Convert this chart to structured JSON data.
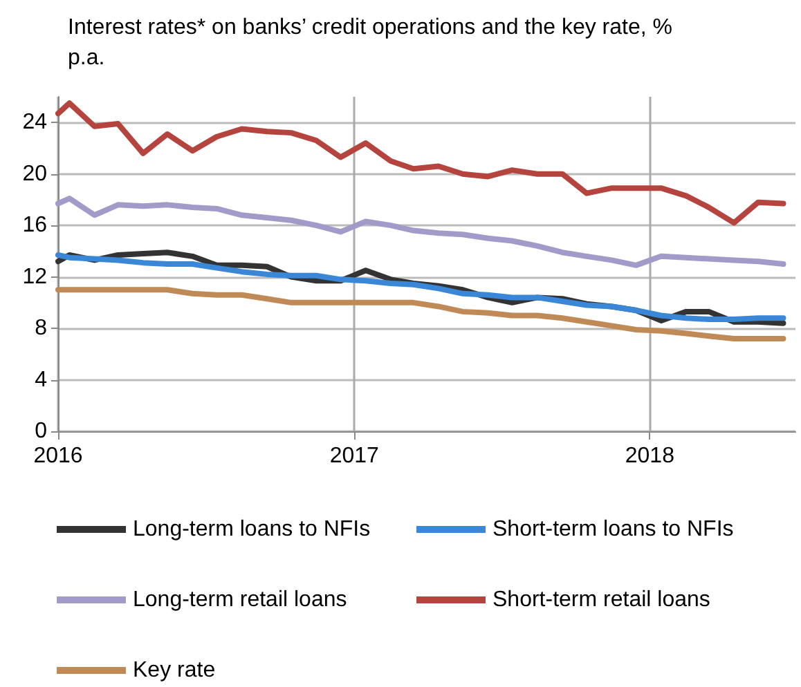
{
  "chart_data": {
    "type": "line",
    "title": "Interest rates* on banks’ credit operations and the key rate, % p.a.",
    "x": [
      "2016-01-01",
      "2016-01-15",
      "2016-02-15",
      "2016-03-15",
      "2016-04-15",
      "2016-05-15",
      "2016-06-15",
      "2016-07-15",
      "2016-08-15",
      "2016-09-15",
      "2016-10-15",
      "2016-11-15",
      "2016-12-15",
      "2017-01-15",
      "2017-02-15",
      "2017-03-15",
      "2017-04-15",
      "2017-05-15",
      "2017-06-15",
      "2017-07-15",
      "2017-08-15",
      "2017-09-15",
      "2017-10-15",
      "2017-11-15",
      "2017-12-15",
      "2018-01-15",
      "2018-02-15",
      "2018-03-15",
      "2018-04-15",
      "2018-05-15",
      "2018-06-15"
    ],
    "series": [
      {
        "name": "Long-term loans to NFIs",
        "color": "#333333",
        "values": [
          13.2,
          13.7,
          13.3,
          13.7,
          13.8,
          13.9,
          13.6,
          12.9,
          12.9,
          12.8,
          12.0,
          11.7,
          11.7,
          12.5,
          11.8,
          11.5,
          11.3,
          11.0,
          10.4,
          10.0,
          10.4,
          10.3,
          9.9,
          9.7,
          9.4,
          8.6,
          9.3,
          9.3,
          8.5,
          8.5,
          8.4
        ]
      },
      {
        "name": "Short-term loans to NFIs",
        "color": "#3a87d8",
        "values": [
          13.7,
          13.5,
          13.4,
          13.3,
          13.1,
          13.0,
          13.0,
          12.7,
          12.4,
          12.2,
          12.1,
          12.1,
          11.8,
          11.7,
          11.5,
          11.4,
          11.1,
          10.7,
          10.6,
          10.4,
          10.4,
          10.1,
          9.8,
          9.7,
          9.4,
          9.0,
          8.8,
          8.7,
          8.7,
          8.8,
          8.8
        ]
      },
      {
        "name": "Long-term retail loans",
        "color": "#a29bc9",
        "values": [
          17.7,
          18.1,
          16.8,
          17.6,
          17.5,
          17.6,
          17.4,
          17.3,
          16.8,
          16.6,
          16.4,
          16.0,
          15.5,
          16.3,
          16.0,
          15.6,
          15.4,
          15.3,
          15.0,
          14.8,
          14.4,
          13.9,
          13.6,
          13.3,
          12.9,
          13.6,
          13.5,
          13.4,
          13.3,
          13.2,
          13.0
        ]
      },
      {
        "name": "Short-term retail loans",
        "color": "#b5443f",
        "values": [
          24.7,
          25.5,
          23.7,
          23.9,
          21.6,
          23.1,
          21.8,
          22.9,
          23.5,
          23.3,
          23.2,
          22.6,
          21.3,
          22.4,
          21.0,
          20.4,
          20.6,
          20.0,
          19.8,
          20.3,
          20.0,
          20.0,
          18.5,
          18.9,
          18.9,
          18.9,
          18.3,
          17.4,
          16.2,
          17.8,
          17.7
        ]
      },
      {
        "name": "Key rate",
        "color": "#c08a57",
        "values": [
          11.0,
          11.0,
          11.0,
          11.0,
          11.0,
          11.0,
          10.7,
          10.6,
          10.6,
          10.3,
          10.0,
          10.0,
          10.0,
          10.0,
          10.0,
          10.0,
          9.7,
          9.3,
          9.2,
          9.0,
          9.0,
          8.8,
          8.5,
          8.2,
          7.9,
          7.8,
          7.6,
          7.4,
          7.2,
          7.2,
          7.2
        ]
      }
    ],
    "xlim": [
      "2016-01-01",
      "2018-06-30"
    ],
    "xticks": [
      "2016",
      "2017",
      "2018"
    ],
    "ylim": [
      0,
      26
    ],
    "yticks": [
      0,
      4,
      8,
      12,
      16,
      20,
      24
    ],
    "grid": true,
    "legend": "bottom",
    "marker": "none",
    "line_style": "solid"
  }
}
